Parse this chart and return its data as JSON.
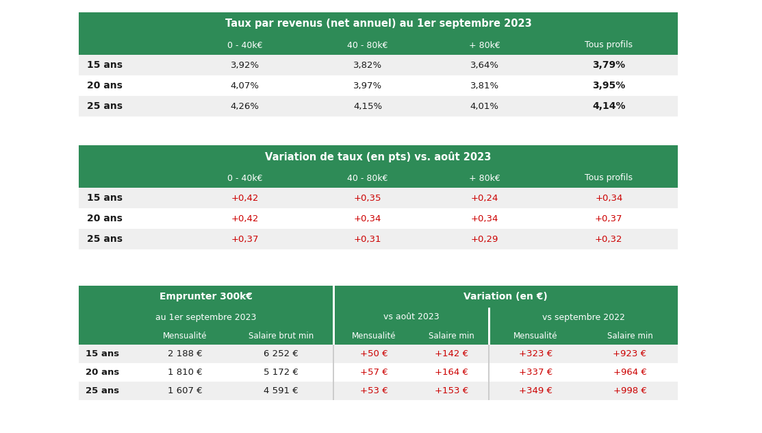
{
  "bg_color": "#ffffff",
  "green": "#2e8b57",
  "light_gray": "#efefef",
  "white": "#ffffff",
  "red_text": "#cc0000",
  "black_text": "#1a1a1a",
  "table1": {
    "title": "Taux par revenus (net annuel) au 1er septembre 2023",
    "col_headers": [
      "",
      "0 - 40k€",
      "40 - 80k€",
      "+ 80k€",
      "Tous profils"
    ],
    "rows": [
      [
        "15 ans",
        "3,92%",
        "3,82%",
        "3,64%",
        "3,79%"
      ],
      [
        "20 ans",
        "4,07%",
        "3,97%",
        "3,81%",
        "3,95%"
      ],
      [
        "25 ans",
        "4,26%",
        "4,15%",
        "4,01%",
        "4,14%"
      ]
    ]
  },
  "table2": {
    "title": "Variation de taux (en pts) vs. août 2023",
    "col_headers": [
      "",
      "0 - 40k€",
      "40 - 80k€",
      "+ 80k€",
      "Tous profils"
    ],
    "rows": [
      [
        "15 ans",
        "+0,42",
        "+0,35",
        "+0,24",
        "+0,34"
      ],
      [
        "20 ans",
        "+0,42",
        "+0,34",
        "+0,34",
        "+0,37"
      ],
      [
        "25 ans",
        "+0,37",
        "+0,31",
        "+0,29",
        "+0,32"
      ]
    ],
    "red_cols": [
      1,
      2,
      3,
      4
    ]
  },
  "table3": {
    "h1_left": "Emprunter 300k€",
    "h1_right": "Variation (en €)",
    "h2_left": "au 1er septembre 2023",
    "h2_mid": "vs août 2023",
    "h2_right": "vs septembre 2022",
    "col_headers": [
      "",
      "Mensualité",
      "Salaire brut min",
      "Mensualité",
      "Salaire min",
      "Mensualité",
      "Salaire min"
    ],
    "rows": [
      [
        "15 ans",
        "2 188 €",
        "6 252 €",
        "+50 €",
        "+142 €",
        "+323 €",
        "+923 €"
      ],
      [
        "20 ans",
        "1 810 €",
        "5 172 €",
        "+57 €",
        "+164 €",
        "+337 €",
        "+964 €"
      ],
      [
        "25 ans",
        "1 607 €",
        "4 591 €",
        "+53 €",
        "+153 €",
        "+349 €",
        "+998 €"
      ]
    ],
    "red_cols": [
      3,
      4,
      5,
      6
    ]
  }
}
